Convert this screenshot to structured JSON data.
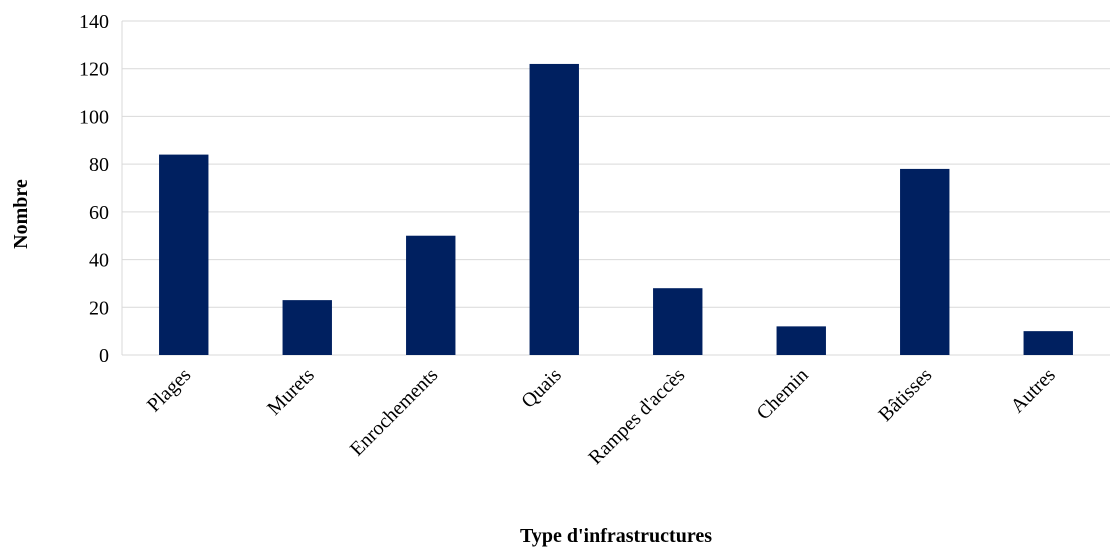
{
  "chart_data": {
    "type": "bar",
    "title": "",
    "xlabel": "Type d'infrastructures",
    "ylabel": "Nombre",
    "categories": [
      "Plages",
      "Murets",
      "Enrochements",
      "Quais",
      "Rampes d'accès",
      "Chemin",
      "Bâtisses",
      "Autres"
    ],
    "values": [
      84,
      23,
      50,
      122,
      28,
      12,
      78,
      10
    ],
    "ylim": [
      0,
      140
    ],
    "yticks": [
      0,
      20,
      40,
      60,
      80,
      100,
      120,
      140
    ],
    "grid": true,
    "legend": "none",
    "bar_color": "#002060"
  }
}
